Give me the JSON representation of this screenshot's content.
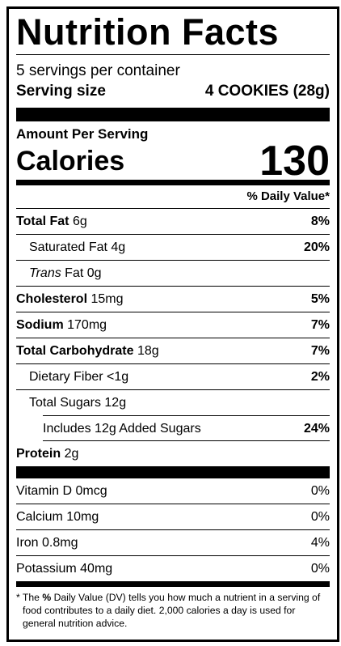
{
  "title": "Nutrition Facts",
  "servings": "5 servings per container",
  "serving_size": {
    "label": "Serving size",
    "value": "4 COOKIES (28g)"
  },
  "amount_per_serving": "Amount Per Serving",
  "calories": {
    "label": "Calories",
    "value": "130"
  },
  "dv_header": "% Daily Value*",
  "nutrients": [
    {
      "name": "Total Fat",
      "amount": "6g",
      "dv": "8%"
    },
    {
      "name": "Saturated Fat",
      "amount": "4g",
      "dv": "20%"
    },
    {
      "name_italic": "Trans",
      "name": "Fat",
      "amount": "0g"
    },
    {
      "name": "Cholesterol",
      "amount": "15mg",
      "dv": "5%"
    },
    {
      "name": "Sodium",
      "amount": "170mg",
      "dv": "7%"
    },
    {
      "name": "Total Carbohydrate",
      "amount": "18g",
      "dv": "7%"
    },
    {
      "name": "Dietary Fiber",
      "amount": "<1g",
      "dv": "2%"
    },
    {
      "name": "Total Sugars",
      "amount": "12g"
    },
    {
      "name": "Includes 12g Added Sugars",
      "dv": "24%"
    },
    {
      "name": "Protein",
      "amount": "2g"
    }
  ],
  "vitamins": [
    {
      "name": "Vitamin D",
      "amount": "0mcg",
      "dv": "0%"
    },
    {
      "name": "Calcium",
      "amount": "10mg",
      "dv": "0%"
    },
    {
      "name": "Iron",
      "amount": "0.8mg",
      "dv": "4%"
    },
    {
      "name": "Potassium",
      "amount": "40mg",
      "dv": "0%"
    }
  ],
  "footnote": {
    "star": "*",
    "pre": "The",
    "bold": "%",
    "text": "Daily Value (DV) tells you how much a nutrient in a serving of food contributes to a daily diet. 2,000 calories a day is used for general nutrition advice."
  }
}
